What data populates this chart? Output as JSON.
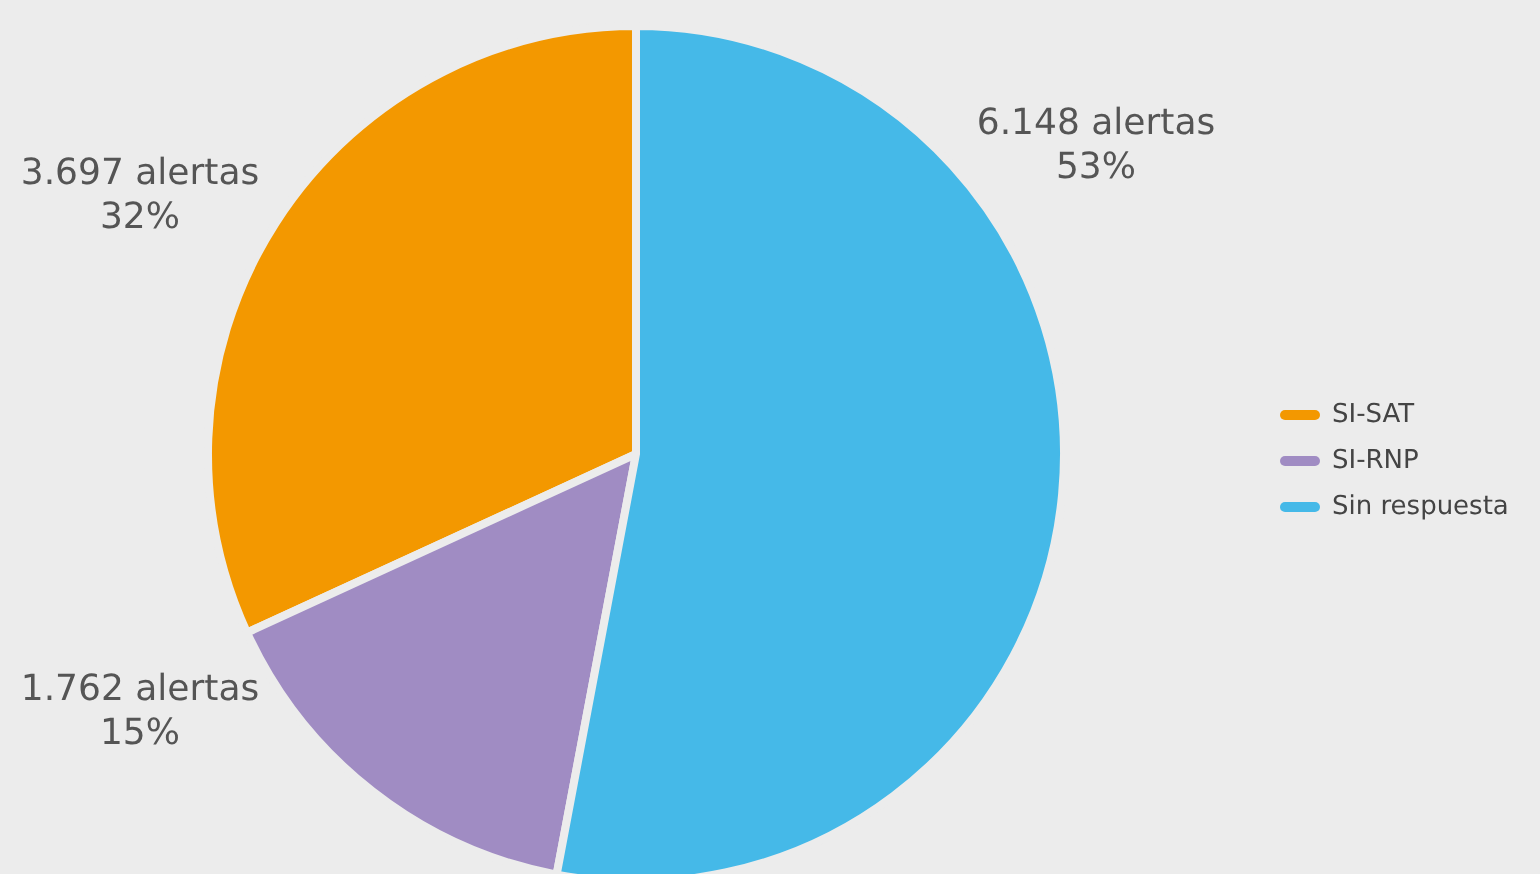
{
  "chart_data": {
    "type": "pie",
    "categories": [
      "SI-SAT",
      "SI-RNP",
      "Sin respuesta"
    ],
    "values": [
      3697,
      1762,
      6148
    ],
    "colors": [
      "#f39800",
      "#a08cc3",
      "#45b9e8"
    ],
    "value_labels": [
      "3.697 alertas\n32%",
      "1.762 alertas\n15%",
      "6.148 alertas\n53%"
    ],
    "legend": "right"
  }
}
